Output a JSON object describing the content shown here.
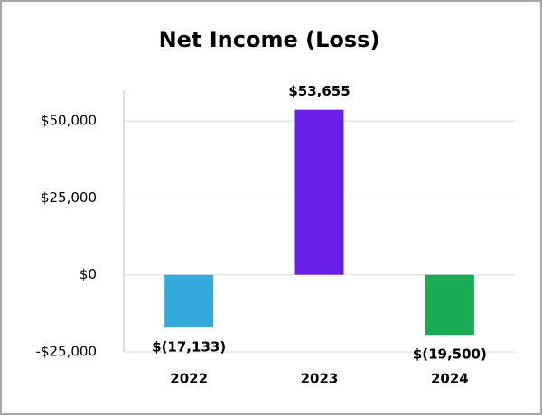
{
  "chart_data": {
    "type": "bar",
    "title": "Net Income (Loss)",
    "categories": [
      "2022",
      "2023",
      "2024"
    ],
    "values": [
      -17133,
      53655,
      -19500
    ],
    "value_labels": [
      "$(17,133)",
      "$53,655",
      "$(19,500)"
    ],
    "colors": [
      "#35a9dc",
      "#6a1fe8",
      "#1aaa55"
    ],
    "ylim": [
      -25000,
      60000
    ],
    "yticks": [
      {
        "value": -25000,
        "label": "-$25,000"
      },
      {
        "value": 0,
        "label": "$0"
      },
      {
        "value": 25000,
        "label": "$25,000"
      },
      {
        "value": 50000,
        "label": "$50,000"
      }
    ],
    "grid": true
  }
}
